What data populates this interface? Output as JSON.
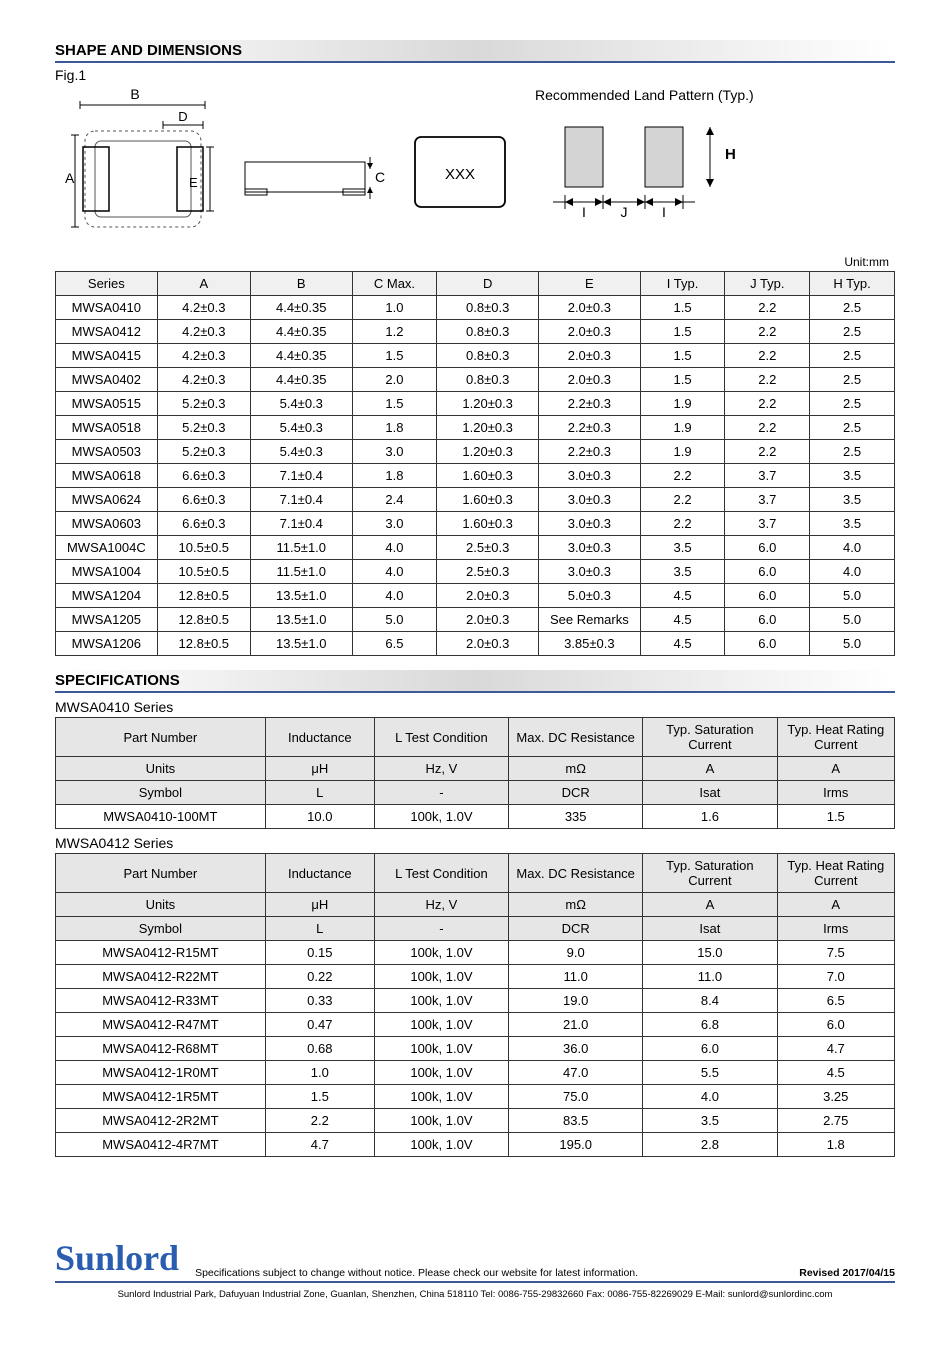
{
  "shape_title": "SHAPE AND DIMENSIONS",
  "fig_label": "Fig.1",
  "land_pattern_label": "Recommended Land Pattern (Typ.)",
  "xxx_label": "XXX",
  "dim_letters": {
    "A": "A",
    "B": "B",
    "C": "C",
    "D": "D",
    "E": "E",
    "H": "H",
    "I": "I",
    "J": "J"
  },
  "unit_label": "Unit:mm",
  "dim_table": {
    "headers": [
      "Series",
      "A",
      "B",
      "C Max.",
      "D",
      "E",
      "I Typ.",
      "J Typ.",
      "H Typ."
    ],
    "col_widths": [
      "12%",
      "11%",
      "12%",
      "10%",
      "12%",
      "12%",
      "10%",
      "10%",
      "10%"
    ],
    "rows": [
      [
        "MWSA0410",
        "4.2±0.3",
        "4.4±0.35",
        "1.0",
        "0.8±0.3",
        "2.0±0.3",
        "1.5",
        "2.2",
        "2.5"
      ],
      [
        "MWSA0412",
        "4.2±0.3",
        "4.4±0.35",
        "1.2",
        "0.8±0.3",
        "2.0±0.3",
        "1.5",
        "2.2",
        "2.5"
      ],
      [
        "MWSA0415",
        "4.2±0.3",
        "4.4±0.35",
        "1.5",
        "0.8±0.3",
        "2.0±0.3",
        "1.5",
        "2.2",
        "2.5"
      ],
      [
        "MWSA0402",
        "4.2±0.3",
        "4.4±0.35",
        "2.0",
        "0.8±0.3",
        "2.0±0.3",
        "1.5",
        "2.2",
        "2.5"
      ],
      [
        "MWSA0515",
        "5.2±0.3",
        "5.4±0.3",
        "1.5",
        "1.20±0.3",
        "2.2±0.3",
        "1.9",
        "2.2",
        "2.5"
      ],
      [
        "MWSA0518",
        "5.2±0.3",
        "5.4±0.3",
        "1.8",
        "1.20±0.3",
        "2.2±0.3",
        "1.9",
        "2.2",
        "2.5"
      ],
      [
        "MWSA0503",
        "5.2±0.3",
        "5.4±0.3",
        "3.0",
        "1.20±0.3",
        "2.2±0.3",
        "1.9",
        "2.2",
        "2.5"
      ],
      [
        "MWSA0618",
        "6.6±0.3",
        "7.1±0.4",
        "1.8",
        "1.60±0.3",
        "3.0±0.3",
        "2.2",
        "3.7",
        "3.5"
      ],
      [
        "MWSA0624",
        "6.6±0.3",
        "7.1±0.4",
        "2.4",
        "1.60±0.3",
        "3.0±0.3",
        "2.2",
        "3.7",
        "3.5"
      ],
      [
        "MWSA0603",
        "6.6±0.3",
        "7.1±0.4",
        "3.0",
        "1.60±0.3",
        "3.0±0.3",
        "2.2",
        "3.7",
        "3.5"
      ],
      [
        "MWSA1004C",
        "10.5±0.5",
        "11.5±1.0",
        "4.0",
        "2.5±0.3",
        "3.0±0.3",
        "3.5",
        "6.0",
        "4.0"
      ],
      [
        "MWSA1004",
        "10.5±0.5",
        "11.5±1.0",
        "4.0",
        "2.5±0.3",
        "3.0±0.3",
        "3.5",
        "6.0",
        "4.0"
      ],
      [
        "MWSA1204",
        "12.8±0.5",
        "13.5±1.0",
        "4.0",
        "2.0±0.3",
        "5.0±0.3",
        "4.5",
        "6.0",
        "5.0"
      ],
      [
        "MWSA1205",
        "12.8±0.5",
        "13.5±1.0",
        "5.0",
        "2.0±0.3",
        "See Remarks",
        "4.5",
        "6.0",
        "5.0"
      ],
      [
        "MWSA1206",
        "12.8±0.5",
        "13.5±1.0",
        "6.5",
        "2.0±0.3",
        "3.85±0.3",
        "4.5",
        "6.0",
        "5.0"
      ]
    ]
  },
  "spec_title": "SPECIFICATIONS",
  "spec_headers": [
    "Part Number",
    "Inductance",
    "L Test Condition",
    "Max. DC Resistance",
    "Typ. Saturation Current",
    "Typ. Heat Rating Current"
  ],
  "spec_units": [
    "Units",
    "μH",
    "Hz, V",
    "mΩ",
    "A",
    "A"
  ],
  "spec_symbols": [
    "Symbol",
    "L",
    "-",
    "DCR",
    "Isat",
    "Irms"
  ],
  "spec_col_widths": [
    "25%",
    "13%",
    "16%",
    "16%",
    "16%",
    "16%"
  ],
  "series_0410": {
    "label": "MWSA0410 Series",
    "rows": [
      [
        "MWSA0410-100MT",
        "10.0",
        "100k, 1.0V",
        "335",
        "1.6",
        "1.5"
      ]
    ]
  },
  "series_0412": {
    "label": "MWSA0412 Series",
    "rows": [
      [
        "MWSA0412-R15MT",
        "0.15",
        "100k, 1.0V",
        "9.0",
        "15.0",
        "7.5"
      ],
      [
        "MWSA0412-R22MT",
        "0.22",
        "100k, 1.0V",
        "11.0",
        "11.0",
        "7.0"
      ],
      [
        "MWSA0412-R33MT",
        "0.33",
        "100k, 1.0V",
        "19.0",
        "8.4",
        "6.5"
      ],
      [
        "MWSA0412-R47MT",
        "0.47",
        "100k, 1.0V",
        "21.0",
        "6.8",
        "6.0"
      ],
      [
        "MWSA0412-R68MT",
        "0.68",
        "100k, 1.0V",
        "36.0",
        "6.0",
        "4.7"
      ],
      [
        "MWSA0412-1R0MT",
        "1.0",
        "100k, 1.0V",
        "47.0",
        "5.5",
        "4.5"
      ],
      [
        "MWSA0412-1R5MT",
        "1.5",
        "100k, 1.0V",
        "75.0",
        "4.0",
        "3.25"
      ],
      [
        "MWSA0412-2R2MT",
        "2.2",
        "100k, 1.0V",
        "83.5",
        "3.5",
        "2.75"
      ],
      [
        "MWSA0412-4R7MT",
        "4.7",
        "100k, 1.0V",
        "195.0",
        "2.8",
        "1.8"
      ]
    ]
  },
  "footer": {
    "logo": "Sunlord",
    "note": "Specifications subject to change without notice. Please check our website for latest information.",
    "revised": "Revised 2017/04/15",
    "address": "Sunlord Industrial Park, Dafuyuan Industrial Zone, Guanlan, Shenzhen, China 518110 Tel: 0086-755-29832660 Fax: 0086-755-82269029 E-Mail: sunlord@sunlordinc.com"
  }
}
